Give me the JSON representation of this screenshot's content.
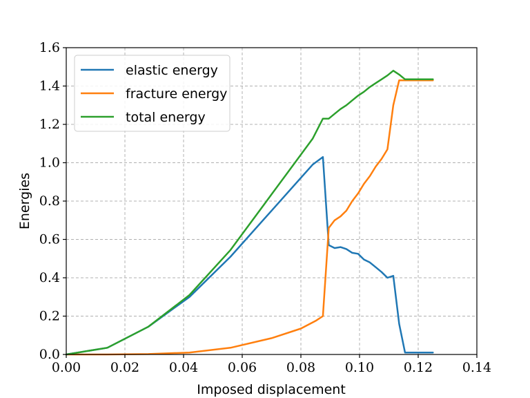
{
  "chart_data": {
    "type": "line",
    "title": "",
    "xlabel": "Imposed displacement",
    "ylabel": "Energies",
    "xlim": [
      0.0,
      0.14
    ],
    "ylim": [
      0.0,
      1.6
    ],
    "xticks": [
      0.0,
      0.02,
      0.04,
      0.06,
      0.08,
      0.1,
      0.12,
      0.14
    ],
    "yticks": [
      0.0,
      0.2,
      0.4,
      0.6,
      0.8,
      1.0,
      1.2,
      1.4,
      1.6
    ],
    "xtick_labels": [
      "0.00",
      "0.02",
      "0.04",
      "0.06",
      "0.08",
      "0.10",
      "0.12",
      "0.14"
    ],
    "ytick_labels": [
      "0.0",
      "0.2",
      "0.4",
      "0.6",
      "0.8",
      "1.0",
      "1.2",
      "1.4",
      "1.6"
    ],
    "grid": true,
    "legend_position": "top-left",
    "series": [
      {
        "name": "elastic energy",
        "color": "#1f77b4",
        "x": [
          0.0,
          0.014,
          0.028,
          0.042,
          0.056,
          0.07,
          0.084,
          0.0875,
          0.0895,
          0.0915,
          0.0935,
          0.0955,
          0.0975,
          0.0995,
          0.1015,
          0.1035,
          0.1055,
          0.1075,
          0.1095,
          0.1115,
          0.1135,
          0.1155,
          0.125
        ],
        "y": [
          0.0,
          0.035,
          0.145,
          0.3,
          0.51,
          0.75,
          0.99,
          1.03,
          0.57,
          0.555,
          0.56,
          0.55,
          0.53,
          0.525,
          0.495,
          0.48,
          0.455,
          0.43,
          0.4,
          0.41,
          0.16,
          0.01,
          0.01
        ]
      },
      {
        "name": "fracture energy",
        "color": "#ff7f0e",
        "x": [
          0.0,
          0.014,
          0.028,
          0.042,
          0.056,
          0.07,
          0.08,
          0.085,
          0.0875,
          0.0895,
          0.0915,
          0.0935,
          0.0955,
          0.0975,
          0.0995,
          0.1015,
          0.1035,
          0.1055,
          0.1075,
          0.1095,
          0.1115,
          0.1135,
          0.1155,
          0.125
        ],
        "y": [
          0.0,
          0.0,
          0.002,
          0.01,
          0.035,
          0.085,
          0.135,
          0.175,
          0.2,
          0.66,
          0.7,
          0.72,
          0.75,
          0.8,
          0.84,
          0.89,
          0.93,
          0.98,
          1.02,
          1.07,
          1.3,
          1.43,
          1.43,
          1.43
        ]
      },
      {
        "name": "total energy",
        "color": "#2ca02c",
        "x": [
          0.0,
          0.014,
          0.028,
          0.042,
          0.056,
          0.07,
          0.084,
          0.0875,
          0.0895,
          0.0915,
          0.0935,
          0.0955,
          0.0975,
          0.0995,
          0.1015,
          0.1035,
          0.1055,
          0.1075,
          0.1095,
          0.1115,
          0.1135,
          0.1155,
          0.125
        ],
        "y": [
          0.0,
          0.035,
          0.145,
          0.31,
          0.545,
          0.835,
          1.125,
          1.23,
          1.23,
          1.255,
          1.28,
          1.3,
          1.325,
          1.35,
          1.37,
          1.395,
          1.415,
          1.435,
          1.455,
          1.48,
          1.46,
          1.435,
          1.435
        ]
      }
    ]
  }
}
